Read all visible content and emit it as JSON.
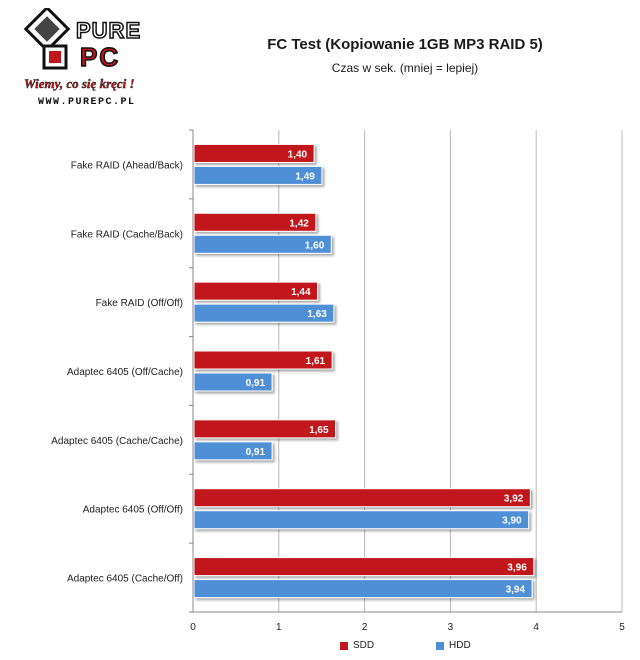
{
  "logo": {
    "brand_top": "PURE",
    "brand_bottom": "PC",
    "tagline": "Wiemy, co się kręci !",
    "url": "WWW.PUREPC.PL"
  },
  "chart_data": {
    "type": "bar",
    "orientation": "horizontal",
    "title": "FC Test (Kopiowanie 1GB MP3 RAID 5)",
    "subtitle": "Czas w sek. (mniej = lepiej)",
    "categories": [
      "Fake RAID (Ahead/Back)",
      "Fake RAID (Cache/Back)",
      "Fake RAID (Off/Off)",
      "Adaptec 6405 (Off/Cache)",
      "Adaptec 6405 (Cache/Cache)",
      "Adaptec 6405 (Off/Off)",
      "Adaptec 6405 (Cache/Off)"
    ],
    "series": [
      {
        "name": "SDD",
        "color": "#c0161c",
        "values": [
          1.4,
          1.42,
          1.44,
          1.61,
          1.65,
          3.92,
          3.96
        ],
        "labels": [
          "1,40",
          "1,42",
          "1,44",
          "1,61",
          "1,65",
          "3,92",
          "3,96"
        ]
      },
      {
        "name": "HDD",
        "color": "#4f8fd6",
        "values": [
          1.49,
          1.6,
          1.63,
          0.91,
          0.91,
          3.9,
          3.94
        ],
        "labels": [
          "1,49",
          "1,60",
          "1,63",
          "0,91",
          "0,91",
          "3,90",
          "3,94"
        ]
      }
    ],
    "xlim": [
      0,
      5
    ],
    "xticks": [
      "0",
      "1",
      "2",
      "3",
      "4",
      "5"
    ],
    "grid": true,
    "legend": "bottom"
  }
}
